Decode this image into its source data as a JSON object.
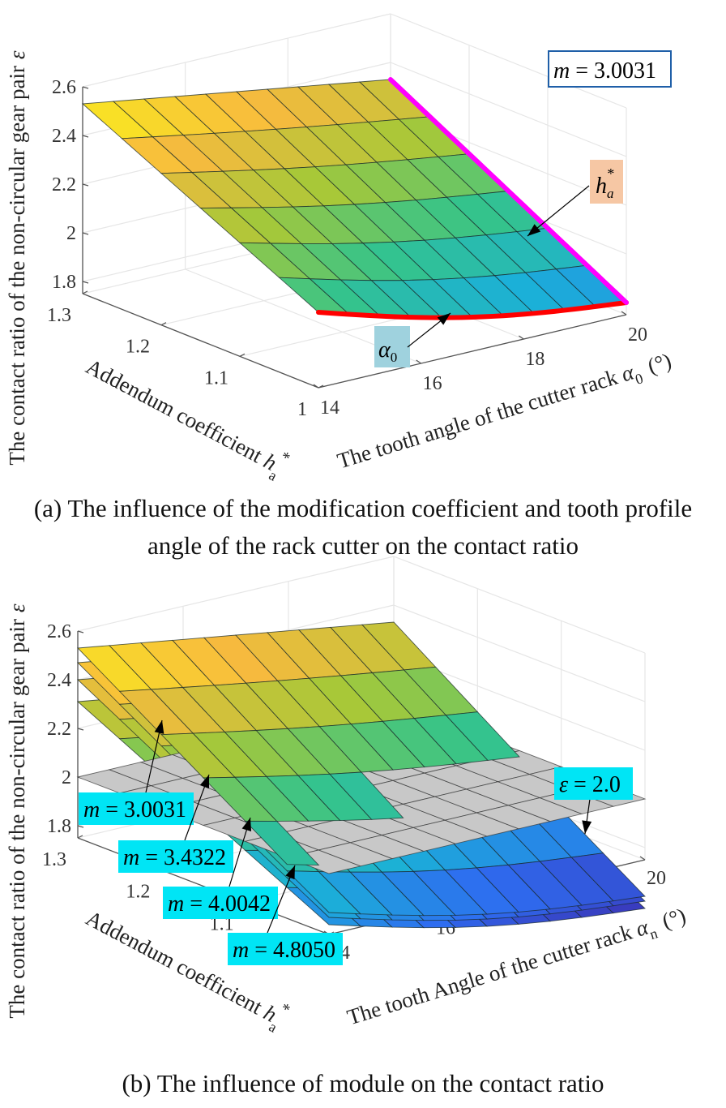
{
  "chart_data": [
    {
      "panel": "a",
      "type": "surface3d",
      "caption": "(a) The influence of the modification coefficient and tooth profile angle of the rack cutter on the contact ratio",
      "zlabel": "The contact ratio of the non-circular gear pair ε",
      "ylabel": "Addendum coefficient h_a*",
      "xlabel": "The tooth angle of the cutter rack α_0 (°)",
      "x_ticks": [
        "14",
        "16",
        "18",
        "20"
      ],
      "y_ticks": [
        "1",
        "1.1",
        "1.2",
        "1.3"
      ],
      "z_ticks": [
        "1.8",
        "2",
        "2.2",
        "2.4",
        "2.6"
      ],
      "xlim": [
        14,
        20
      ],
      "ylim": [
        1,
        1.3
      ],
      "zlim": [
        1.75,
        2.6
      ],
      "grid": true,
      "mesh": {
        "nx": 11,
        "ny": 7
      },
      "series": [
        {
          "name": "m = 3.0031",
          "corners": {
            "h1.3_a14": 2.53,
            "h1.3_a20": 2.33,
            "h1.0_a14": 2.06,
            "h1.0_a20": 1.8
          }
        }
      ],
      "annotations": [
        {
          "text": "m = 3.0031",
          "style": "boxed",
          "border": "#1f5fa8"
        },
        {
          "text": "h_a*",
          "target": "edge at α0 = 20 (magenta line)",
          "bg": "#f6c7a4",
          "line_color": "#ff00ff"
        },
        {
          "text": "α_0",
          "target": "edge at h_a* = 1 (red line)",
          "bg": "#9fd2de",
          "line_color": "#ff0000"
        }
      ]
    },
    {
      "panel": "b",
      "type": "surface3d",
      "caption": "(b) The influence of module on the contact ratio",
      "zlabel": "The contact ratio of the non-circular gear pair ε",
      "ylabel": "Addendum coefficient h_a*",
      "xlabel": "The tooth Angle of the cutter rack α_n (°)",
      "x_ticks": [
        "14",
        "16",
        "18",
        "20"
      ],
      "y_ticks": [
        "1",
        "1.1",
        "1.2",
        "1.3"
      ],
      "z_ticks": [
        "1.8",
        "2",
        "2.2",
        "2.4",
        "2.6"
      ],
      "xlim": [
        14,
        20
      ],
      "ylim": [
        1,
        1.3
      ],
      "zlim": [
        1.75,
        2.6
      ],
      "grid": true,
      "mesh": {
        "nx": 11,
        "ny": 7
      },
      "series": [
        {
          "name": "m = 3.0031",
          "corners": {
            "h1.3_a14": 2.53,
            "h1.3_a20": 2.33,
            "h1.0_a14": 1.86,
            "h1.0_a20": 1.62
          }
        },
        {
          "name": "m = 3.4322",
          "corners": {
            "h1.3_a14": 2.47,
            "h1.3_a20": 2.27,
            "h1.0_a14": 1.84,
            "h1.0_a20": 1.6
          }
        },
        {
          "name": "m = 4.0042",
          "corners": {
            "h1.3_a14": 2.4,
            "h1.3_a20": 2.2,
            "h1.0_a14": 1.82,
            "h1.0_a20": 1.58
          }
        },
        {
          "name": "m = 4.8050",
          "corners": {
            "h1.3_a14": 2.31,
            "h1.3_a20": 2.11,
            "h1.0_a14": 1.79,
            "h1.0_a20": 1.55
          }
        },
        {
          "name": "ε = 2.0",
          "plane": 2.0,
          "color": "#c8c8c8"
        }
      ],
      "annotations": [
        {
          "text": "m = 3.0031",
          "bg": "#00e5f5"
        },
        {
          "text": "m = 3.4322",
          "bg": "#00e5f5"
        },
        {
          "text": "m = 4.0042",
          "bg": "#00e5f5"
        },
        {
          "text": "m = 4.8050",
          "bg": "#00e5f5"
        },
        {
          "text": "ε = 2.0",
          "bg": "#00e5f5"
        }
      ]
    }
  ],
  "colors": {
    "colormap": [
      "#3e26a8",
      "#2e6cf0",
      "#1bb0d8",
      "#35c48a",
      "#a8c838",
      "#f8ba3e",
      "#f9fb15"
    ],
    "plane": "#c8c8c8",
    "highlight_edge_h": "#ff00ff",
    "highlight_edge_alpha": "#ff0000"
  }
}
